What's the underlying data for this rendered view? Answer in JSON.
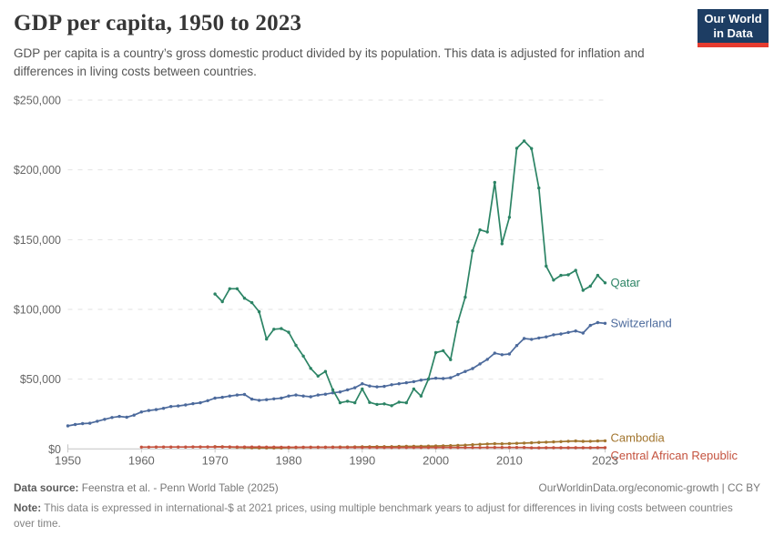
{
  "header": {
    "title": "GDP per capita, 1950 to 2023",
    "subtitle": "GDP per capita is a country’s gross domestic product divided by its population. This data is adjusted for inflation and differences in living costs between countries.",
    "logo": {
      "line1": "Our World",
      "line2": "in Data",
      "bg_color": "#1d3d63",
      "bar_color": "#e63b2f"
    }
  },
  "chart_data": {
    "type": "line",
    "title": "GDP per capita, 1950 to 2023",
    "xlabel": "",
    "ylabel": "",
    "x_range": [
      1950,
      2023
    ],
    "ylim": [
      0,
      250000
    ],
    "grid": "dashed-horizontal",
    "legend_position": "line-end-labels",
    "x_ticks": [
      1950,
      1960,
      1970,
      1980,
      1990,
      2000,
      2010,
      2023
    ],
    "y_ticks": [
      {
        "value": 0,
        "label": "$0"
      },
      {
        "value": 50000,
        "label": "$50,000"
      },
      {
        "value": 100000,
        "label": "$100,000"
      },
      {
        "value": 150000,
        "label": "$150,000"
      },
      {
        "value": 200000,
        "label": "$200,000"
      },
      {
        "value": 250000,
        "label": "$250,000"
      }
    ],
    "series": [
      {
        "name": "Qatar",
        "color": "#2C8465",
        "start_year": 1970,
        "values": [
          111000,
          105500,
          114800,
          114800,
          108000,
          104800,
          98300,
          78700,
          85800,
          86200,
          83600,
          74200,
          66500,
          57700,
          52200,
          55500,
          42300,
          33100,
          34200,
          33100,
          43000,
          33300,
          31900,
          32300,
          31000,
          33500,
          33100,
          43000,
          37900,
          50000,
          69000,
          70400,
          64000,
          91000,
          108700,
          142000,
          157000,
          155500,
          191000,
          147000,
          166000,
          215500,
          220700,
          215300,
          187000,
          131000,
          121000,
          124400,
          124800,
          128000,
          113700,
          116600,
          124400,
          119000
        ]
      },
      {
        "name": "Switzerland",
        "color": "#4C6A9C",
        "start_year": 1950,
        "values": [
          16500,
          17500,
          18100,
          18400,
          19800,
          21200,
          22500,
          23300,
          22700,
          24200,
          26500,
          27500,
          28200,
          29100,
          30400,
          30800,
          31500,
          32400,
          33100,
          34600,
          36400,
          37000,
          37900,
          38600,
          39000,
          35700,
          34800,
          35300,
          35900,
          36400,
          37900,
          38600,
          37900,
          37400,
          38600,
          39200,
          40200,
          40800,
          42300,
          43800,
          46700,
          45100,
          44500,
          44800,
          46000,
          46700,
          47400,
          48200,
          49300,
          50000,
          50700,
          50400,
          51000,
          53300,
          55500,
          57600,
          60900,
          64200,
          68600,
          67500,
          68000,
          74100,
          79100,
          78500,
          79500,
          80300,
          81800,
          82400,
          83500,
          84500,
          83000,
          88500,
          90500,
          90000
        ]
      },
      {
        "name": "Cambodia",
        "color": "#A2752E",
        "start_year": 1970,
        "values": [
          1600,
          1500,
          1300,
          1100,
          1000,
          800,
          750,
          700,
          650,
          700,
          900,
          1000,
          1100,
          1150,
          1200,
          1250,
          1300,
          1350,
          1400,
          1450,
          1500,
          1550,
          1600,
          1600,
          1650,
          1750,
          1800,
          1850,
          1900,
          2000,
          2100,
          2250,
          2350,
          2500,
          2700,
          3000,
          3250,
          3500,
          3700,
          3650,
          3800,
          4000,
          4200,
          4400,
          4600,
          4800,
          5000,
          5200,
          5450,
          5650,
          5400,
          5450,
          5650,
          5800
        ]
      },
      {
        "name": "Central African Republic",
        "color": "#C4523E",
        "start_year": 1960,
        "values": [
          1300,
          1320,
          1340,
          1350,
          1370,
          1380,
          1400,
          1410,
          1420,
          1430,
          1440,
          1430,
          1420,
          1400,
          1380,
          1370,
          1350,
          1330,
          1300,
          1250,
          1200,
          1180,
          1170,
          1150,
          1160,
          1170,
          1150,
          1120,
          1100,
          1080,
          1050,
          1020,
          1000,
          980,
          970,
          990,
          960,
          970,
          990,
          1000,
          1010,
          1020,
          1020,
          980,
          990,
          1000,
          1010,
          1020,
          1030,
          1040,
          1050,
          1060,
          1070,
          800,
          810,
          830,
          850,
          860,
          870,
          880,
          870,
          880,
          890,
          900
        ]
      }
    ]
  },
  "footer": {
    "data_source_label": "Data source:",
    "data_source": "Feenstra et al. - Penn World Table (2025)",
    "credit": "OurWorldinData.org/economic-growth | CC BY",
    "note_label": "Note:",
    "note": "This data is expressed in international-$ at 2021 prices, using multiple benchmark years to adjust for differences in living costs between countries over time."
  }
}
